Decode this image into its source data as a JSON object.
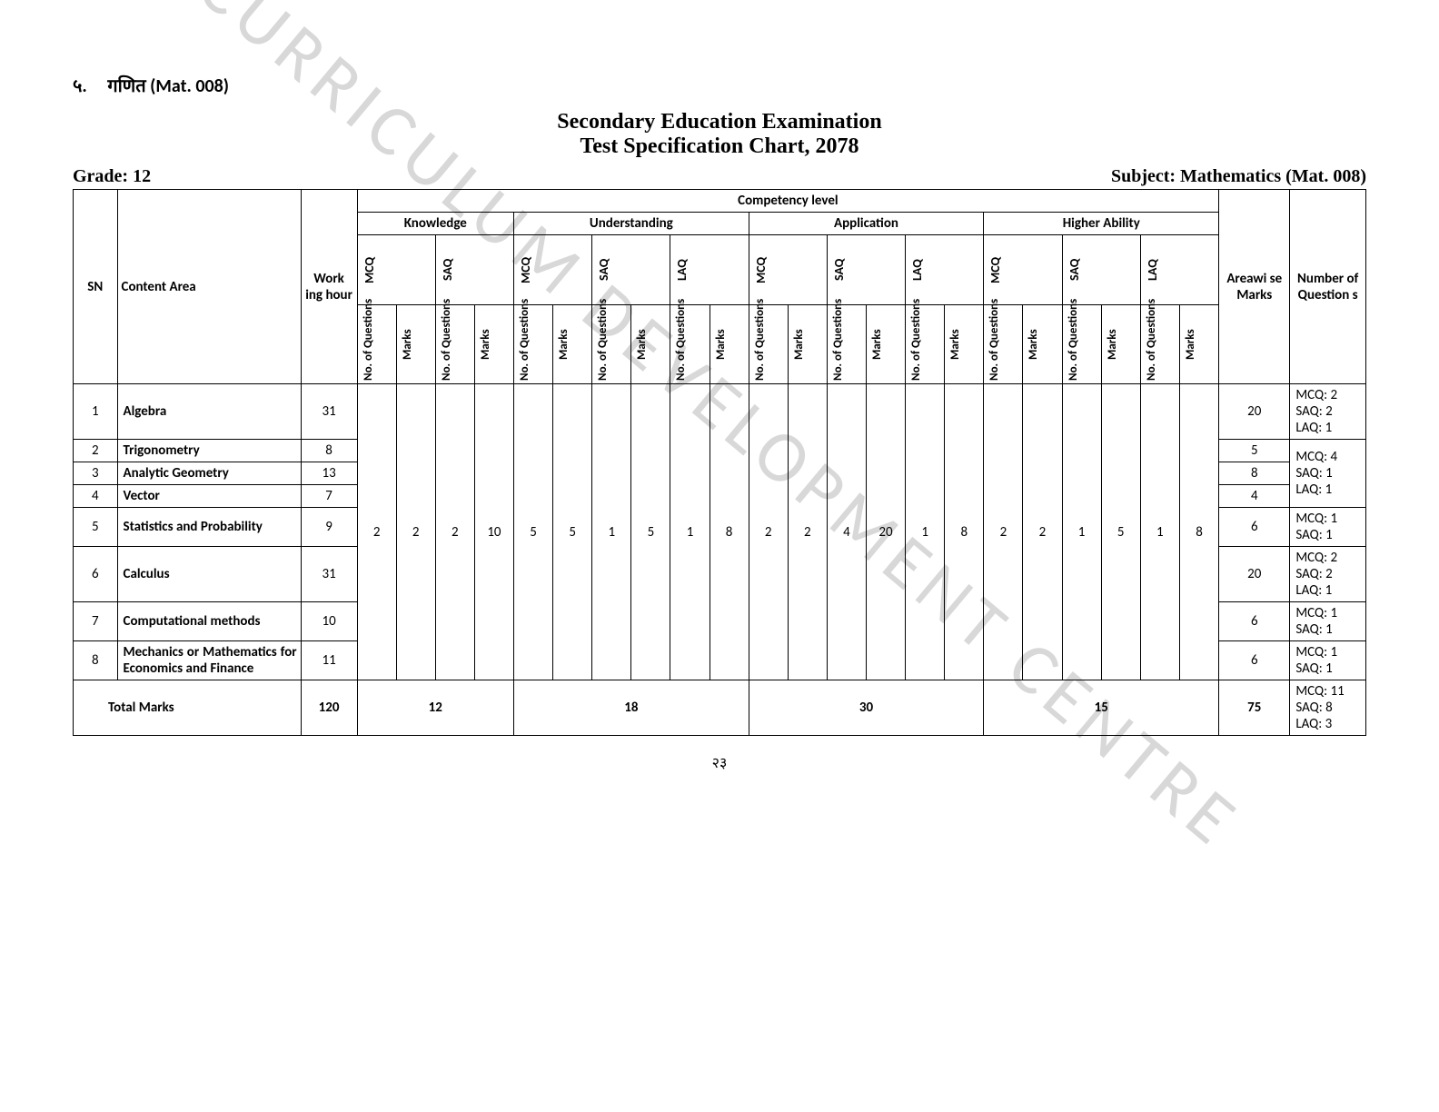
{
  "watermark": "CURRICULUM DEVELOPMENT CENTRE",
  "section": {
    "number": "५.",
    "label": "गणित  (Mat. 008)"
  },
  "title_line1": "Secondary Education Examination",
  "title_line2": "Test Specification Chart, 2078",
  "grade_label": "Grade: 12",
  "subject_label": "Subject: Mathematics (Mat. 008)",
  "headers": {
    "sn": "SN",
    "content_area": "Content Area",
    "working_hour": "Work ing hour",
    "competency": "Competency level",
    "competency_groups": [
      "Knowledge",
      "Understanding",
      "Application",
      "Higher Ability"
    ],
    "qtypes": [
      "MCQ",
      "SAQ",
      "LAQ"
    ],
    "subcols": [
      "No. of Questions",
      "Marks"
    ],
    "areawise_marks": "Areawi se Marks",
    "num_questions": "Number of Question s"
  },
  "middle_values": {
    "knowledge": [
      "2",
      "2",
      "2",
      "10"
    ],
    "understanding": [
      "5",
      "5",
      "1",
      "5",
      "1",
      "8"
    ],
    "application": [
      "2",
      "2",
      "4",
      "20",
      "1",
      "8"
    ],
    "higher": [
      "2",
      "2",
      "1",
      "5",
      "1",
      "8"
    ]
  },
  "rows": [
    {
      "sn": "1",
      "content": "Algebra",
      "wh": "31",
      "am": "20",
      "nq": "MCQ: 2\nSAQ: 2\nLAQ: 1",
      "nq_rowspan": 1
    },
    {
      "sn": "2",
      "content": "Trigonometry",
      "wh": "8",
      "am": "5",
      "nq": "MCQ: 4\nSAQ: 1\nLAQ: 1",
      "nq_rowspan": 3
    },
    {
      "sn": "3",
      "content": "Analytic Geometry",
      "wh": "13",
      "am": "8"
    },
    {
      "sn": "4",
      "content": "Vector",
      "wh": "7",
      "am": "4"
    },
    {
      "sn": "5",
      "content": "Statistics and Probability",
      "wh": "9",
      "am": "6",
      "nq": "MCQ: 1\nSAQ: 1",
      "nq_rowspan": 1,
      "content_justify": true
    },
    {
      "sn": "6",
      "content": "Calculus",
      "wh": "31",
      "am": "20",
      "nq": "MCQ: 2\nSAQ: 2\nLAQ: 1",
      "nq_rowspan": 1
    },
    {
      "sn": "7",
      "content": "Computational methods",
      "wh": "10",
      "am": "6",
      "nq": "MCQ: 1\nSAQ: 1",
      "nq_rowspan": 1
    },
    {
      "sn": "8",
      "content": "Mechanics or Mathematics for Economics and Finance",
      "wh": "11",
      "am": "6",
      "nq": "MCQ: 1\nSAQ: 1",
      "nq_rowspan": 1,
      "content_justify": true
    }
  ],
  "totals": {
    "label": "Total Marks",
    "wh": "120",
    "knowledge": "12",
    "understanding": "18",
    "application": "30",
    "higher": "15",
    "areawise": "75",
    "nq": "MCQ: 11\nSAQ: 8\nLAQ: 3"
  },
  "page_number": "२३"
}
